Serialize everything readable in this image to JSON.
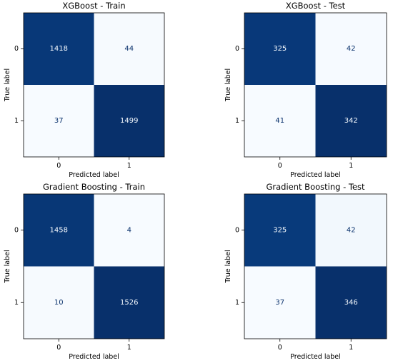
{
  "chart_data": [
    {
      "type": "heatmap",
      "title": "XGBoost - Train",
      "xlabel": "Predicted label",
      "ylabel": "True label",
      "x_ticks": [
        "0",
        "1"
      ],
      "y_ticks": [
        "0",
        "1"
      ],
      "colormap": "Blues",
      "matrix": [
        [
          1418,
          44
        ],
        [
          37,
          1499
        ]
      ]
    },
    {
      "type": "heatmap",
      "title": "XGBoost - Test",
      "xlabel": "Predicted label",
      "ylabel": "True label",
      "x_ticks": [
        "0",
        "1"
      ],
      "y_ticks": [
        "0",
        "1"
      ],
      "colormap": "Blues",
      "matrix": [
        [
          325,
          42
        ],
        [
          41,
          342
        ]
      ]
    },
    {
      "type": "heatmap",
      "title": "Gradient Boosting - Train",
      "xlabel": "Predicted label",
      "ylabel": "True label",
      "x_ticks": [
        "0",
        "1"
      ],
      "y_ticks": [
        "0",
        "1"
      ],
      "colormap": "Blues",
      "matrix": [
        [
          1458,
          4
        ],
        [
          10,
          1526
        ]
      ]
    },
    {
      "type": "heatmap",
      "title": "Gradient Boosting - Test",
      "xlabel": "Predicted label",
      "ylabel": "True label",
      "x_ticks": [
        "0",
        "1"
      ],
      "y_ticks": [
        "0",
        "1"
      ],
      "colormap": "Blues",
      "matrix": [
        [
          325,
          42
        ],
        [
          37,
          346
        ]
      ]
    }
  ],
  "colors": {
    "cell_dark": "#08306b",
    "cell_mid": "#08468f",
    "cell_light": "#f7fbff",
    "text_on_dark": "#f7fbff",
    "text_on_light": "#08306b"
  }
}
